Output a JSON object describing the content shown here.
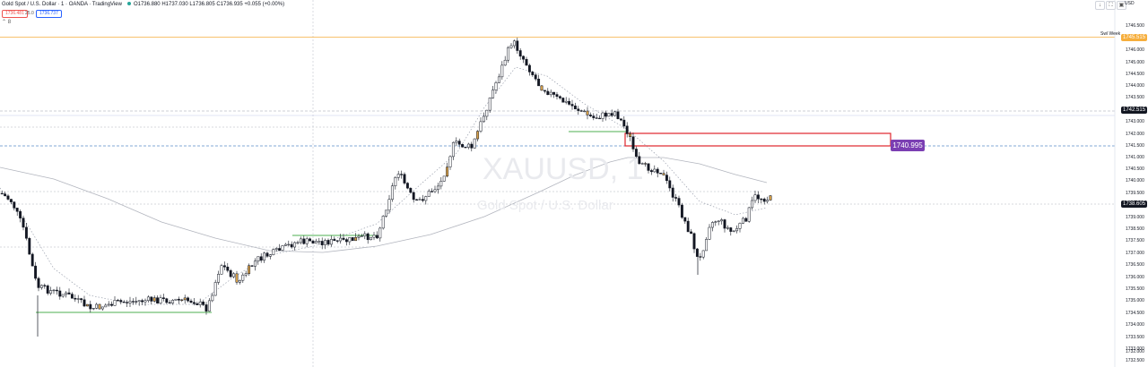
{
  "legend": {
    "title": "Gold Spot / U.S. Dollar · 1 · OANDA · TradingView",
    "ohlc": "O1736.880 H1737.030 L1736.805 C1736.935 +0.055 (+0.00%)"
  },
  "trade": {
    "sell": "1736.481",
    "spread": "25.0",
    "buy": "1736.737"
  },
  "collapse_label": "8",
  "toolbar": {
    "down_icon": "↓",
    "expand_icon": "⛶",
    "camera_icon": "▣",
    "currency": "USD"
  },
  "watermark": {
    "symbol": "XAUUSD, 1",
    "name": "Gold Spot / U.S. Dollar"
  },
  "price_axis": {
    "ticks": [
      "1746.500",
      "1746.000",
      "1745.000",
      "1744.500",
      "1744.000",
      "1743.500",
      "1743.000",
      "1742.000",
      "1741.500",
      "1741.000",
      "1740.500",
      "1740.000",
      "1739.500",
      "1739.000",
      "1738.500",
      "1737.500",
      "1737.000",
      "1736.500",
      "1736.000",
      "1735.500",
      "1735.000",
      "1734.500",
      "1734.000",
      "1733.500",
      "1733.000",
      "1732.500",
      "1732.000"
    ],
    "swl_label": "Swl Week",
    "swl_price": "1745.515",
    "black_tag_1": "1742.515",
    "black_tag_2": "1738.605"
  },
  "callout": "1740.995",
  "colors": {
    "up_body": "#ffffff",
    "down_body": "#131722",
    "highlight_candle": "#d9a24a",
    "ma": "#b2b5be",
    "swl_line": "#f6ae3c",
    "zone_border": "#e0242b",
    "support": "#4caf50",
    "callout_bg": "#7b3fb3"
  },
  "chart_data": {
    "type": "candlestick",
    "price_range": [
      1731.8,
      1746.9
    ],
    "bars": 250,
    "closes_sample": [
      1739.1,
      1738.9,
      1738.4,
      1737.5,
      1736.4,
      1735.1,
      1734.9,
      1734.8,
      1734.6,
      1734.7,
      1734.9,
      1734.5,
      1734.6,
      1734.7,
      1734.8,
      1734.9,
      1734.7,
      1734.6,
      1734.7,
      1734.4,
      1734.1,
      1735.4,
      1736.0,
      1735.7,
      1735.9,
      1736.4,
      1736.8,
      1737.1,
      1737.3,
      1737.4,
      1737.5,
      1737.3,
      1737.4,
      1737.6,
      1737.7,
      1737.8,
      1738.2,
      1739.7,
      1739.8,
      1739.4,
      1739.5,
      1740.6,
      1741.4,
      1742.3,
      1741.4,
      1740.9,
      1740.9,
      1741.6,
      1742.5,
      1743.9,
      1745.1,
      1745.4,
      1745.2,
      1744.6,
      1743.4,
      1743.3,
      1743.2,
      1742.8,
      1742.5,
      1742.2,
      1742.1,
      1741.9,
      1741.3,
      1742.6,
      1742.4,
      1741.5,
      1740.5,
      1740.2,
      1740.4,
      1740.2,
      1739.6,
      1738.9,
      1738.1,
      1737.1,
      1736.2,
      1737.5,
      1737.8,
      1737.6,
      1737.5,
      1737.9,
      1738.3,
      1738.9,
      1738.8
    ]
  }
}
